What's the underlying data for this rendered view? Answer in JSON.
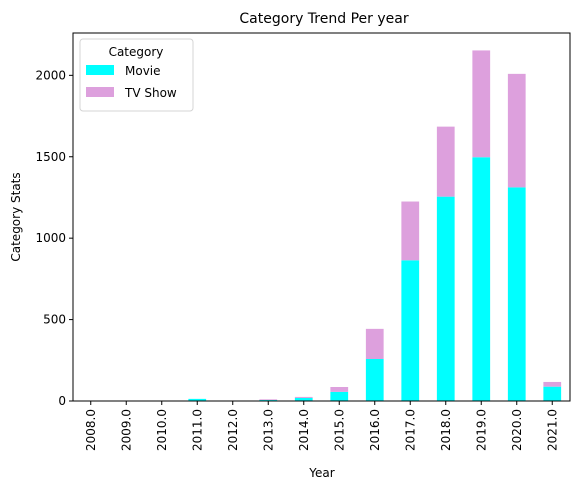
{
  "chart_data": {
    "type": "bar",
    "stacked": true,
    "title": "Category Trend Per year",
    "xlabel": "Year",
    "ylabel": "Category Stats",
    "categories": [
      "2008.0",
      "2009.0",
      "2010.0",
      "2011.0",
      "2012.0",
      "2013.0",
      "2014.0",
      "2015.0",
      "2016.0",
      "2017.0",
      "2018.0",
      "2019.0",
      "2020.0",
      "2021.0"
    ],
    "series": [
      {
        "name": "Movie",
        "color": "#00FFFF",
        "values": [
          1,
          2,
          1,
          13,
          3,
          6,
          19,
          56,
          258,
          864,
          1255,
          1497,
          1312,
          88
        ]
      },
      {
        "name": "TV Show",
        "color": "#DDA0DD",
        "values": [
          1,
          0,
          0,
          0,
          0,
          4,
          6,
          30,
          185,
          361,
          430,
          656,
          697,
          29
        ]
      }
    ],
    "yticks": [
      0,
      500,
      1000,
      1500,
      2000
    ],
    "ylim": [
      0,
      2260
    ],
    "grid": false,
    "legend": {
      "title": "Category",
      "placement": "top-left"
    }
  }
}
